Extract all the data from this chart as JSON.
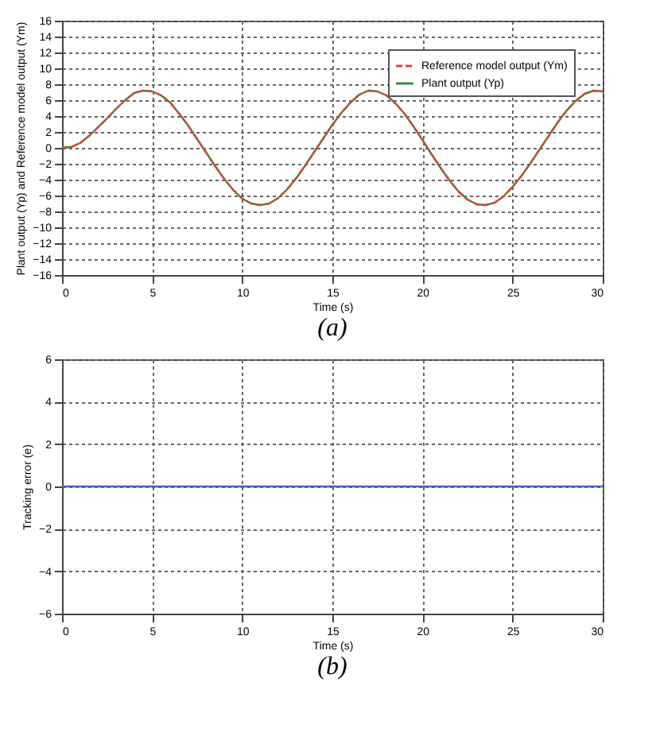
{
  "chart_data": [
    {
      "type": "line",
      "xlabel": "Time (s)",
      "ylabel": "Plant output (Yp) and Reference model output (Ym)",
      "annotations": [
        "(a)"
      ],
      "x": [
        0,
        0.5,
        1,
        1.5,
        2,
        2.5,
        3,
        3.5,
        4,
        4.5,
        5,
        5.5,
        6,
        6.5,
        7,
        7.5,
        8,
        8.5,
        9,
        9.5,
        10,
        10.5,
        11,
        11.5,
        12,
        12.5,
        13,
        13.5,
        14,
        14.5,
        15,
        15.5,
        16,
        16.5,
        17,
        17.5,
        18,
        18.5,
        19,
        19.5,
        20,
        20.5,
        21,
        21.5,
        22,
        22.5,
        23,
        23.5,
        24,
        24.5,
        25,
        25.5,
        26,
        26.5,
        27,
        27.5,
        28,
        28.5,
        29,
        29.5,
        30
      ],
      "series": [
        {
          "name": "Reference model output (Ym)",
          "color": "#e0403a",
          "line_style": "dashed",
          "values": [
            0,
            0.1,
            0.6,
            1.5,
            2.6,
            3.7,
            4.9,
            6.0,
            6.9,
            7.2,
            7.1,
            6.6,
            5.7,
            4.3,
            2.8,
            1.1,
            -0.6,
            -2.3,
            -3.9,
            -5.3,
            -6.4,
            -7.0,
            -7.2,
            -7.0,
            -6.3,
            -5.2,
            -3.8,
            -2.2,
            -0.5,
            1.2,
            2.9,
            4.4,
            5.7,
            6.7,
            7.2,
            7.1,
            6.6,
            5.6,
            4.3,
            2.7,
            1.0,
            -0.8,
            -2.5,
            -4.1,
            -5.5,
            -6.5,
            -7.1,
            -7.2,
            -6.9,
            -6.1,
            -4.9,
            -3.5,
            -1.9,
            -0.2,
            1.5,
            3.2,
            4.7,
            5.9,
            6.8,
            7.2,
            7.1
          ]
        },
        {
          "name": "Plant output (Yp)",
          "color": "#3a8a3a",
          "line_style": "solid",
          "values": [
            0,
            0.1,
            0.6,
            1.5,
            2.6,
            3.7,
            4.9,
            6.0,
            6.9,
            7.2,
            7.1,
            6.6,
            5.7,
            4.3,
            2.8,
            1.1,
            -0.6,
            -2.3,
            -3.9,
            -5.3,
            -6.4,
            -7.0,
            -7.2,
            -7.0,
            -6.3,
            -5.2,
            -3.8,
            -2.2,
            -0.5,
            1.2,
            2.9,
            4.4,
            5.7,
            6.7,
            7.2,
            7.1,
            6.6,
            5.6,
            4.3,
            2.7,
            1.0,
            -0.8,
            -2.5,
            -4.1,
            -5.5,
            -6.5,
            -7.1,
            -7.2,
            -6.9,
            -6.1,
            -4.9,
            -3.5,
            -1.9,
            -0.2,
            1.5,
            3.2,
            4.7,
            5.9,
            6.8,
            7.2,
            7.1
          ]
        }
      ],
      "xlim": [
        0,
        30
      ],
      "xticks": [
        0,
        5,
        10,
        15,
        20,
        25,
        30
      ],
      "ylim": [
        -16,
        16
      ],
      "yticks": [
        -16,
        -14,
        -12,
        -10,
        -8,
        -6,
        -4,
        -2,
        0,
        2,
        4,
        6,
        8,
        10,
        12,
        14,
        16
      ],
      "grid": true,
      "legend": "top right"
    },
    {
      "type": "line",
      "xlabel": "Time (s)",
      "ylabel": "Tracking error (e)",
      "annotations": [
        "(b)"
      ],
      "x": [
        0,
        5,
        10,
        15,
        20,
        25,
        30
      ],
      "series": [
        {
          "color": "#4a5fd0",
          "line_style": "solid",
          "values": [
            0,
            0,
            0,
            0,
            0,
            0,
            0
          ]
        }
      ],
      "xlim": [
        0,
        30
      ],
      "xticks": [
        0,
        5,
        10,
        15,
        20,
        25,
        30
      ],
      "ylim": [
        -6,
        6
      ],
      "yticks": [
        -6,
        -4,
        -2,
        0,
        2,
        4,
        6
      ],
      "grid": true
    }
  ]
}
